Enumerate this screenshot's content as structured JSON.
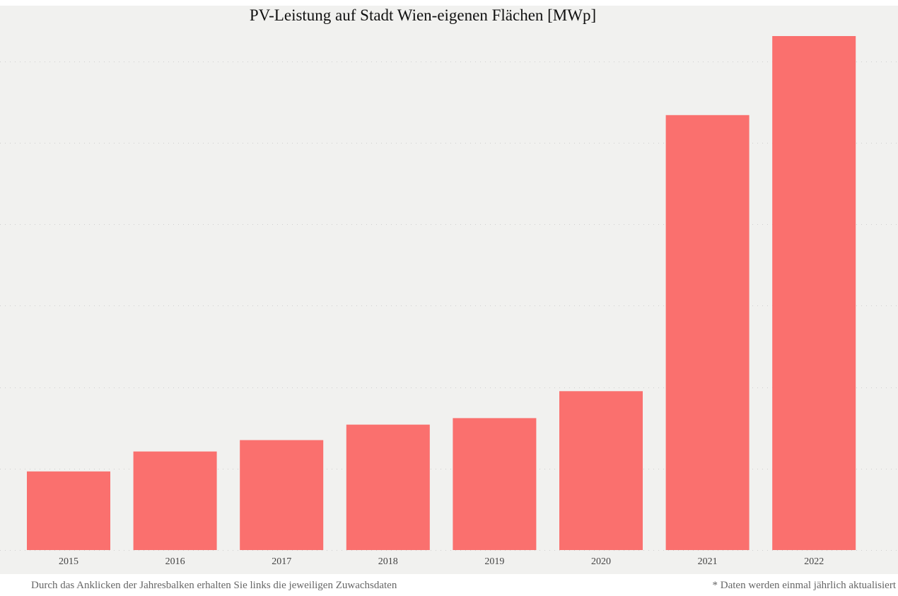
{
  "chart_data": {
    "type": "bar",
    "title": "PV-Leistung auf Stadt Wien-eigenen Flächen [MWp]",
    "xlabel": "",
    "ylabel": "",
    "categories": [
      "2015",
      "2016",
      "2017",
      "2018",
      "2019",
      "2020",
      "2021",
      "2022"
    ],
    "values": [
      1.93,
      2.42,
      2.7,
      3.08,
      3.24,
      3.9,
      10.68,
      12.62
    ],
    "ylim": [
      0,
      12.62
    ],
    "y_gridlines": [
      0,
      2,
      4,
      6,
      8,
      10,
      12
    ],
    "grid": true,
    "grid_style": "dotted",
    "bar_color": "#fa706e",
    "legend": "none"
  },
  "footer": {
    "left_note": "Durch das Anklicken der Jahresbalken erhalten Sie links die jeweiligen Zuwachsdaten",
    "right_note": "* Daten werden einmal jährlich aktualisiert"
  },
  "colors": {
    "panel_background": "#f1f1ef",
    "gridline": "#cfcfcf",
    "tick_label": "#444444",
    "footer_text": "#666666"
  }
}
